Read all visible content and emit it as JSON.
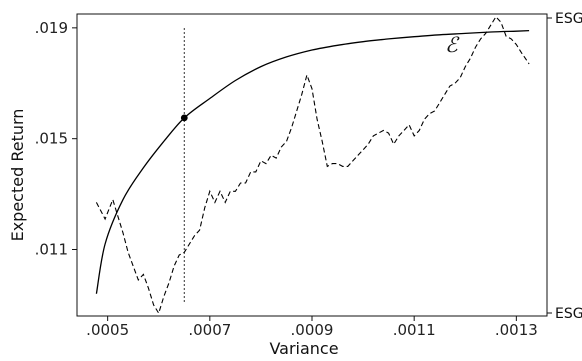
{
  "chart_data": {
    "type": "line",
    "title": "",
    "xlabel": "Variance",
    "ylabel": "Expected Return",
    "xlim": [
      0.00044,
      0.00136
    ],
    "ylim": [
      0.0086,
      0.0195
    ],
    "x_ticks": [
      {
        "value": 0.0005,
        "label": ".0005"
      },
      {
        "value": 0.0007,
        "label": ".0007"
      },
      {
        "value": 0.0009,
        "label": ".0009"
      },
      {
        "value": 0.0011,
        "label": ".0011"
      },
      {
        "value": 0.0013,
        "label": ".0013"
      }
    ],
    "y_ticks": [
      {
        "value": 0.011,
        "label": ".011"
      },
      {
        "value": 0.015,
        "label": ".015"
      },
      {
        "value": 0.019,
        "label": ".019"
      }
    ],
    "right_axis": {
      "top_label": "ESG″",
      "bottom_label": "ESG′"
    },
    "frontier": {
      "label": "ℰ",
      "x": [
        0.000478,
        0.000495,
        0.00053,
        0.00057,
        0.00061,
        0.00065,
        0.0007,
        0.00075,
        0.0008,
        0.00085,
        0.0009,
        0.00095,
        0.001,
        0.00105,
        0.0011,
        0.00115,
        0.0012,
        0.00125,
        0.0013,
        0.001325
      ],
      "y": [
        0.0094,
        0.0112,
        0.0128,
        0.01395,
        0.0149,
        0.01575,
        0.01645,
        0.0171,
        0.0176,
        0.01795,
        0.0182,
        0.01837,
        0.0185,
        0.0186,
        0.01868,
        0.01875,
        0.0188,
        0.01885,
        0.01888,
        0.0189
      ]
    },
    "esg_series": {
      "x": [
        0.000478,
        0.000495,
        0.00051,
        0.00052,
        0.00053,
        0.00054,
        0.00055,
        0.00056,
        0.00057,
        0.00058,
        0.00059,
        0.0006,
        0.00061,
        0.00062,
        0.00063,
        0.00064,
        0.00065,
        0.00066,
        0.00067,
        0.00068,
        0.00069,
        0.0007,
        0.00071,
        0.00072,
        0.00073,
        0.00074,
        0.00075,
        0.00076,
        0.00077,
        0.00078,
        0.00079,
        0.0008,
        0.00081,
        0.00082,
        0.00083,
        0.00084,
        0.00085,
        0.00086,
        0.00087,
        0.00088,
        0.00089,
        0.0009,
        0.00091,
        0.00092,
        0.00093,
        0.00094,
        0.00095,
        0.00096,
        0.00097,
        0.00098,
        0.00099,
        0.001,
        0.00101,
        0.00102,
        0.00103,
        0.00104,
        0.00105,
        0.00106,
        0.00107,
        0.00108,
        0.00109,
        0.0011,
        0.00111,
        0.00112,
        0.00113,
        0.00114,
        0.00115,
        0.00116,
        0.00117,
        0.00118,
        0.00119,
        0.0012,
        0.00121,
        0.00122,
        0.00123,
        0.00124,
        0.00125,
        0.00126,
        0.00127,
        0.00128,
        0.00129,
        0.0013,
        0.00131,
        0.001325
      ],
      "y": [
        0.0127,
        0.0121,
        0.0128,
        0.0122,
        0.0116,
        0.0109,
        0.0104,
        0.0099,
        0.0101,
        0.0096,
        0.009,
        0.0087,
        0.0093,
        0.0098,
        0.0104,
        0.0108,
        0.0109,
        0.0112,
        0.0115,
        0.0117,
        0.0125,
        0.0131,
        0.0127,
        0.0131,
        0.0127,
        0.0131,
        0.0131,
        0.0134,
        0.0134,
        0.0138,
        0.0138,
        0.0142,
        0.0141,
        0.0144,
        0.0143,
        0.0147,
        0.0149,
        0.0154,
        0.016,
        0.0166,
        0.0173,
        0.0168,
        0.0157,
        0.0149,
        0.014,
        0.0141,
        0.0141,
        0.014,
        0.014,
        0.0142,
        0.0144,
        0.0146,
        0.0148,
        0.0151,
        0.0152,
        0.0153,
        0.0152,
        0.0148,
        0.0151,
        0.0153,
        0.0155,
        0.0151,
        0.0153,
        0.0157,
        0.0159,
        0.016,
        0.0163,
        0.0166,
        0.0169,
        0.017,
        0.0172,
        0.0176,
        0.0179,
        0.0183,
        0.0186,
        0.0188,
        0.0191,
        0.0194,
        0.0192,
        0.0187,
        0.0186,
        0.0184,
        0.0181,
        0.0177
      ]
    },
    "marker": {
      "x": 0.00065,
      "y": 0.01575
    },
    "vertical_reference_x": 0.00065,
    "grid": false,
    "legend": "none"
  }
}
